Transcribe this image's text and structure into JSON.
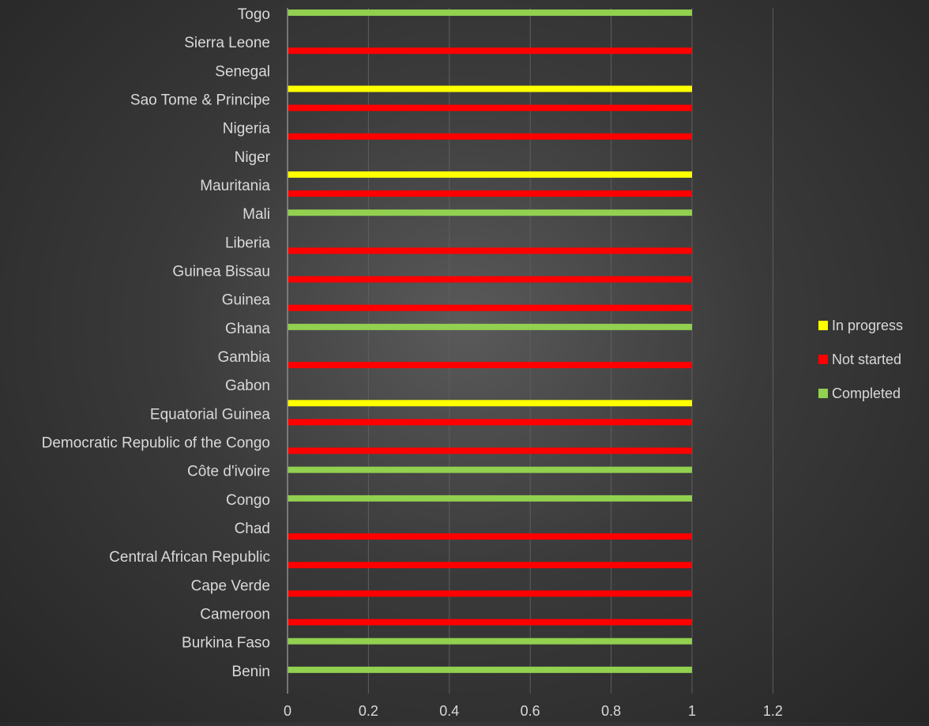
{
  "chart_data": {
    "type": "bar",
    "orientation": "horizontal",
    "categories": [
      "Benin",
      "Burkina Faso",
      "Cameroon",
      "Cape Verde",
      "Central African Republic",
      "Chad",
      "Congo",
      "Côte d'ivoire",
      "Democratic Republic of the Congo",
      "Equatorial Guinea",
      "Gabon",
      "Gambia",
      "Ghana",
      "Guinea",
      "Guinea Bissau",
      "Liberia",
      "Mali",
      "Mauritania",
      "Niger",
      "Nigeria",
      "Sao Tome & Principe",
      "Senegal",
      "Sierra Leone",
      "Togo"
    ],
    "series": [
      {
        "name": "In progress",
        "color": "#ffff00",
        "values": [
          0,
          0,
          0,
          0,
          0,
          0,
          0,
          0,
          0,
          0,
          1,
          0,
          0,
          0,
          0,
          0,
          0,
          0,
          1,
          0,
          0,
          1,
          0,
          0
        ]
      },
      {
        "name": "Not started",
        "color": "#ff0000",
        "values": [
          0,
          0,
          1,
          1,
          1,
          1,
          0,
          0,
          1,
          1,
          0,
          1,
          0,
          1,
          1,
          1,
          0,
          1,
          0,
          1,
          1,
          0,
          1,
          0
        ]
      },
      {
        "name": "Completed",
        "color": "#92d050",
        "values": [
          1,
          1,
          0,
          0,
          0,
          0,
          1,
          1,
          0,
          0,
          0,
          0,
          1,
          0,
          0,
          0,
          1,
          0,
          0,
          0,
          0,
          0,
          0,
          1
        ]
      }
    ],
    "xlim": [
      0,
      1.2
    ],
    "xticks": [
      "0",
      "0.2",
      "0.4",
      "0.6",
      "0.8",
      "1",
      "1.2"
    ],
    "grid": true,
    "legend_position": "right"
  }
}
